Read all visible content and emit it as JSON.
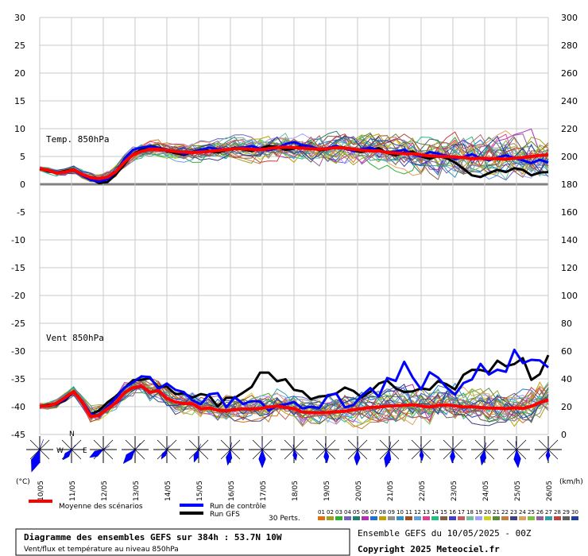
{
  "chart_data": {
    "type": "line",
    "panels": [
      {
        "label": "Temp. 850hPa",
        "unit": "°C",
        "ylim": [
          -45,
          30
        ],
        "ensemble_mean": [
          2.8,
          2.5,
          2.0,
          2.2,
          2.6,
          1.8,
          1.2,
          1.0,
          1.3,
          2.3,
          4.0,
          5.3,
          5.9,
          6.3,
          6.3,
          6.1,
          5.9,
          5.8,
          5.7,
          5.8,
          5.9,
          6.1,
          6.2,
          6.4,
          6.4,
          6.3,
          6.2,
          6.4,
          6.6,
          6.7,
          6.6,
          6.5,
          6.4,
          6.3,
          6.4,
          6.6,
          6.5,
          6.3,
          6.1,
          6.0,
          6.0,
          5.7,
          5.6,
          5.5,
          5.5,
          5.3,
          5.1,
          5.0,
          5.0,
          4.9,
          4.8,
          4.6,
          4.7,
          4.6,
          4.6,
          4.5,
          4.7,
          4.8,
          5.0,
          5.2,
          5.3
        ],
        "control_run": [
          2.8,
          2.4,
          2.1,
          2.2,
          2.5,
          1.6,
          0.8,
          0.5,
          0.9,
          2.2,
          4.6,
          6.2,
          6.6,
          6.8,
          6.5,
          6.1,
          5.9,
          5.5,
          5.7,
          6.2,
          6.6,
          6.3,
          6.2,
          6.5,
          6.6,
          6.9,
          6.4,
          6.1,
          6.5,
          7.2,
          7.6,
          7.0,
          6.8,
          6.3,
          6.5,
          6.9,
          6.4,
          6.0,
          6.3,
          6.6,
          6.1,
          5.7,
          5.9,
          6.2,
          5.4,
          5.0,
          5.8,
          5.5,
          5.1,
          4.6,
          4.9,
          5.4,
          4.7,
          4.3,
          4.8,
          5.2,
          4.7,
          4.3,
          3.8,
          4.4,
          3.9
        ],
        "gfs_run": [
          2.8,
          2.3,
          2.1,
          2.4,
          2.7,
          1.9,
          1.0,
          0.2,
          0.4,
          1.8,
          3.6,
          5.4,
          6.2,
          6.9,
          6.6,
          6.0,
          5.6,
          5.3,
          5.8,
          6.3,
          6.0,
          5.7,
          6.1,
          6.6,
          6.3,
          6.0,
          6.4,
          6.9,
          6.7,
          6.2,
          6.4,
          7.0,
          6.8,
          6.1,
          6.3,
          6.8,
          6.6,
          6.0,
          5.8,
          6.2,
          6.5,
          5.6,
          5.2,
          5.7,
          5.9,
          5.0,
          4.6,
          5.1,
          4.7,
          3.9,
          2.8,
          1.6,
          1.3,
          2.0,
          2.6,
          2.2,
          2.9,
          2.6,
          1.6,
          2.1,
          2.2
        ]
      },
      {
        "label": "Vent 850hPa",
        "unit": "km/h",
        "ylim": [
          0,
          300
        ],
        "ensemble_mean": [
          20.3,
          20.6,
          22.5,
          26.6,
          30.8,
          23.8,
          12.9,
          13.8,
          18.5,
          22.9,
          30.1,
          33.6,
          34.8,
          30.4,
          31.5,
          26.0,
          23.3,
          22.3,
          22.2,
          18.4,
          19.1,
          17.4,
          17.0,
          17.9,
          18.4,
          18.3,
          18.7,
          19.7,
          20.5,
          19.4,
          18.6,
          16.1,
          15.7,
          15.7,
          15.8,
          16.3,
          16.7,
          17.8,
          18.6,
          19.4,
          19.7,
          20.4,
          20.6,
          20.9,
          21.4,
          20.5,
          19.7,
          20.9,
          21.1,
          20.6,
          19.8,
          19.8,
          19.4,
          19.0,
          18.9,
          18.5,
          19.2,
          18.7,
          20.3,
          23.0,
          24.8
        ],
        "control_run": [
          20.4,
          20.8,
          22.1,
          25.4,
          30.9,
          24.2,
          14.8,
          13.2,
          19.9,
          26.4,
          33.7,
          37.4,
          41.8,
          41.3,
          32.8,
          36.7,
          32.1,
          30.5,
          24.6,
          21.7,
          28.9,
          29.7,
          19.5,
          26.9,
          21.9,
          24.0,
          23.8,
          17.2,
          20.6,
          21.6,
          23.4,
          18.7,
          20.0,
          19.1,
          28.3,
          29.4,
          19.5,
          21.2,
          28.0,
          33.4,
          27.3,
          40.6,
          38.5,
          52.3,
          41.1,
          32.4,
          44.8,
          40.9,
          33.8,
          28.7,
          37.0,
          39.6,
          50.8,
          43.1,
          46.6,
          45.1,
          60.9,
          51.4,
          53.7,
          53.3,
          48.2
        ],
        "gfs_run": [
          20.5,
          21.4,
          21.9,
          24.6,
          31.0,
          22.9,
          14.5,
          17.2,
          23.1,
          27.6,
          33.5,
          39.0,
          39.4,
          40.5,
          34.1,
          34.5,
          29.0,
          29.6,
          26.5,
          29.1,
          27.9,
          20.1,
          26.4,
          26.3,
          30.1,
          34.2,
          44.5,
          44.5,
          38.3,
          39.7,
          32.1,
          30.9,
          25.4,
          27.4,
          27.8,
          29.6,
          33.8,
          31.4,
          26.6,
          30.7,
          36.6,
          38.8,
          33.2,
          30.5,
          31.0,
          33.2,
          32.2,
          38.4,
          36.1,
          32.4,
          42.9,
          46.5,
          46.4,
          44.9,
          53.1,
          49.1,
          50.7,
          54.9,
          39.3,
          43.4,
          57.1
        ]
      }
    ],
    "x_categories": [
      "10/05",
      "11/05",
      "12/05",
      "13/05",
      "14/05",
      "15/05",
      "16/05",
      "17/05",
      "18/05",
      "19/05",
      "20/05",
      "21/05",
      "22/05",
      "23/05",
      "24/05",
      "25/05",
      "26/05"
    ],
    "y_left_ticks": [
      30,
      25,
      20,
      15,
      10,
      5,
      0,
      -5,
      -10,
      -15,
      -20,
      -25,
      -30,
      -35,
      -40,
      -45
    ],
    "y_right_ticks": [
      300,
      280,
      260,
      240,
      220,
      200,
      180,
      160,
      140,
      120,
      100,
      80,
      60,
      40,
      20,
      0
    ],
    "left_unit": "(°C)",
    "right_unit": "(km/h)",
    "perturbation_count_label": "30 Perts.",
    "perturbation_labels": [
      "01",
      "02",
      "03",
      "04",
      "05",
      "06",
      "07",
      "08",
      "09",
      "10",
      "11",
      "12",
      "13",
      "14",
      "15",
      "16",
      "17",
      "18",
      "19",
      "20",
      "21",
      "22",
      "23",
      "24",
      "25",
      "26",
      "27",
      "28",
      "29",
      "30"
    ],
    "perturbation_colors": [
      "#e07010",
      "#a0a020",
      "#30b030",
      "#7060c0",
      "#208070",
      "#b030b0",
      "#2070d0",
      "#c0a000",
      "#909090",
      "#3090c0",
      "#a05020",
      "#60a0e0",
      "#e04090",
      "#20c080",
      "#806040",
      "#4040c0",
      "#c06060",
      "#70c0a0",
      "#a0a0ff",
      "#d0d020",
      "#5a8a3a",
      "#c08040",
      "#404080",
      "#e0a060",
      "#80c040",
      "#9060a0",
      "#30a0a0",
      "#c04040",
      "#606060",
      "#2040a0"
    ],
    "legend": {
      "mean": "Moyenne des scénarios",
      "control": "Run de contrôle",
      "gfs": "Run GFS",
      "mean_color": "#ff0000",
      "control_color": "#0000ff",
      "gfs_color": "#000000"
    },
    "grid": true,
    "wind_rose_axis_labels": {
      "n": "N",
      "w": "W",
      "e": "E"
    },
    "title_line1": "Diagramme des ensembles GEFS sur 384h : 53.7N 10W",
    "title_line2": "Vent/flux et température au niveau 850hPa",
    "run_info": "Ensemble GEFS du 10/05/2025 - 00Z",
    "copyright": "Copyright 2025 Meteociel.fr"
  }
}
